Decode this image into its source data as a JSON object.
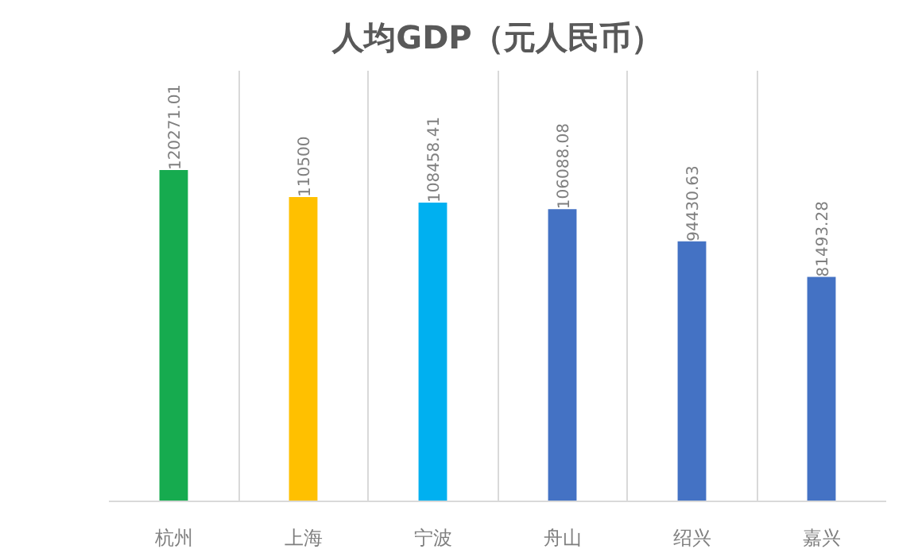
{
  "chart_data": {
    "type": "bar",
    "title": "人均GDP（元人民币）",
    "categories": [
      "杭州",
      "上海",
      "宁波",
      "舟山",
      "绍兴",
      "嘉兴"
    ],
    "values": [
      120271.01,
      110500,
      108458.41,
      106088.08,
      94430.63,
      81493.28
    ],
    "colors": [
      "#16ab4f",
      "#ffc000",
      "#00b0f0",
      "#4472c4",
      "#4472c4",
      "#4472c4"
    ],
    "value_labels": [
      "120271.01",
      "110500",
      "108458.41",
      "106088.08",
      "94430.63",
      "81493.28"
    ],
    "grid": "x"
  }
}
